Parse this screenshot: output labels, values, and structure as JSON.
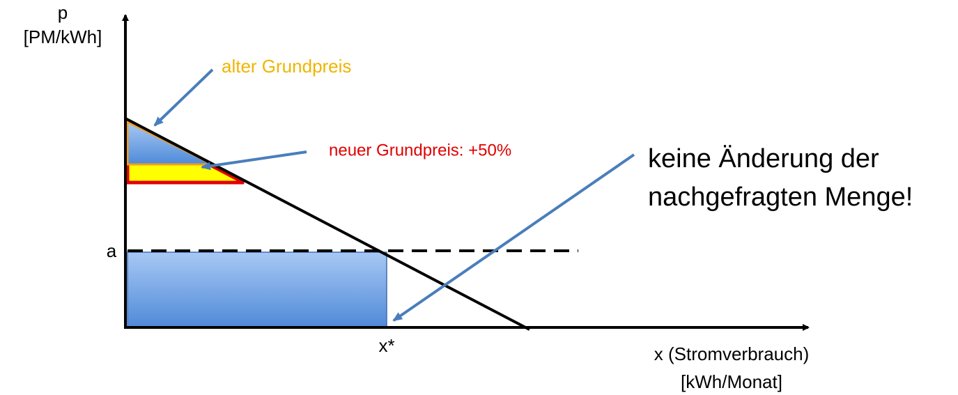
{
  "axes": {
    "y_label": "p",
    "y_unit": "[PM/kWh]",
    "x_label": "x (Stromverbrauch)",
    "x_unit": "[kWh/Monat]",
    "price_mark": "a",
    "quantity_mark": "x*"
  },
  "annotations": {
    "old_fee": "alter Grundpreis",
    "new_fee": "neuer Grundpreis: +50%",
    "note_line1": "keine Änderung der",
    "note_line2": "nachgefragten Menge!"
  }
}
